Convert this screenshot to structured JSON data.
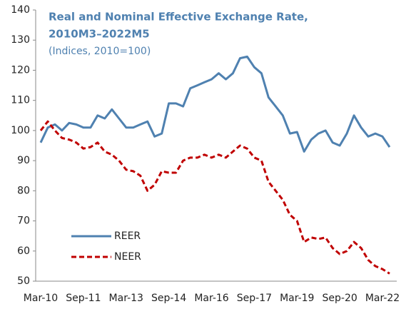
{
  "chart_data": {
    "type": "line",
    "title": [
      "Real and Nominal Effective Exchange Rate,",
      "2010M3–2022M5"
    ],
    "subtitle": "(Indices, 2010=100)",
    "categories": [
      "Mar-10",
      null,
      null,
      null,
      null,
      null,
      "Sep-11",
      null,
      null,
      null,
      null,
      null,
      "Mar-13",
      null,
      null,
      null,
      null,
      null,
      "Sep-14",
      null,
      null,
      null,
      null,
      null,
      "Mar-16",
      null,
      null,
      null,
      null,
      null,
      "Sep-17",
      null,
      null,
      null,
      null,
      null,
      "Mar-19",
      null,
      null,
      null,
      null,
      null,
      "Sep-20",
      null,
      null,
      null,
      null,
      null,
      "Mar-22",
      null
    ],
    "series": [
      {
        "name": "REER",
        "color": "#4f81b0",
        "dash": false,
        "values": [
          96,
          101,
          102,
          100,
          102.5,
          102,
          101,
          101,
          105,
          104,
          107,
          104,
          101,
          101,
          102,
          103,
          98,
          99,
          109,
          109,
          108,
          114,
          115,
          116,
          117,
          119,
          117,
          119,
          124,
          124.5,
          121,
          119,
          111,
          108,
          105,
          99,
          99.5,
          93,
          97,
          99,
          100,
          96,
          95,
          99,
          105,
          101,
          98,
          99,
          98,
          94.5
        ]
      },
      {
        "name": "NEER",
        "color": "#c00000",
        "dash": true,
        "values": [
          100,
          103,
          100,
          97.5,
          97,
          96,
          94,
          94.5,
          96,
          93,
          92,
          90,
          87,
          86.5,
          85,
          80,
          82,
          86.5,
          86,
          86,
          90,
          91,
          91,
          92,
          91,
          92,
          91,
          93,
          95,
          94,
          91,
          90,
          83,
          80,
          77,
          72,
          70,
          63,
          64.5,
          64,
          64.5,
          61,
          59,
          60,
          63,
          61,
          57,
          55,
          54,
          52.5
        ]
      }
    ],
    "ylim": [
      50,
      140
    ],
    "yticks": [
      50,
      60,
      70,
      80,
      90,
      100,
      110,
      120,
      130,
      140
    ],
    "title_color": "#4f81b0"
  }
}
